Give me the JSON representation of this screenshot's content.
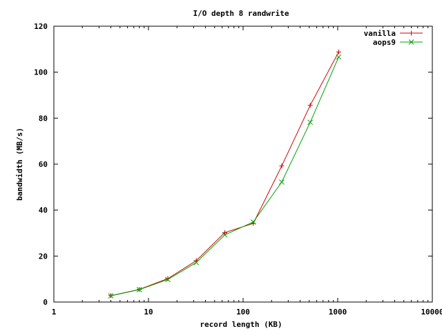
{
  "chart_data": {
    "type": "line",
    "title": "I/O depth 8 randwrite",
    "xlabel": "record length (KB)",
    "ylabel": "bandwidth (MB/s)",
    "xscale": "log",
    "xlim": [
      1,
      10000
    ],
    "ylim": [
      0,
      120
    ],
    "xticks": [
      1,
      10,
      100,
      1000,
      10000
    ],
    "xtick_labels": [
      "1",
      "10",
      "100",
      "1000",
      "10000"
    ],
    "yticks": [
      0,
      20,
      40,
      60,
      80,
      100,
      120
    ],
    "ytick_labels": [
      "0",
      "20",
      "40",
      "60",
      "80",
      "100",
      "120"
    ],
    "legend_position": "top-right",
    "grid": false,
    "x": [
      4,
      8,
      16,
      32,
      64,
      128,
      256,
      512,
      1024
    ],
    "series": [
      {
        "name": "vanilla",
        "color": "#cc0000",
        "marker": "plus",
        "values": [
          2.8,
          5.5,
          10.2,
          18.0,
          30.2,
          34.2,
          59.2,
          85.6,
          108.8
        ]
      },
      {
        "name": "aops9",
        "color": "#00a000",
        "marker": "cross",
        "values": [
          2.7,
          5.4,
          9.8,
          17.2,
          29.2,
          34.8,
          52.2,
          78.2,
          106.6
        ]
      }
    ]
  }
}
